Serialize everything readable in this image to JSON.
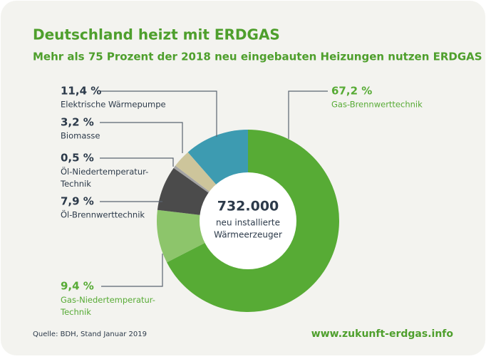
{
  "chart_data": {
    "type": "donut",
    "title": "Deutschland heizt mit ERDGAS",
    "subtitle": "Mehr als 75 Prozent der 2018 neu eingebauten Heizungen nutzen ERDGAS",
    "categories": [
      "Gas-Brennwerttechnik",
      "Gas-Niedertemperatur-Technik",
      "Öl-Brennwerttechnik",
      "Öl-Niedertemperatur-Technik",
      "Biomasse",
      "Elektrische Wärmepumpe"
    ],
    "values": [
      67.2,
      9.4,
      7.9,
      0.5,
      3.2,
      11.4
    ],
    "value_labels": [
      "67,2 %",
      "9,4 %",
      "7,9 %",
      "0,5 %",
      "3,2 %",
      "11,4 %"
    ],
    "colors": [
      "#57ab35",
      "#8dc56b",
      "#4b4b4b",
      "#a3a3a3",
      "#cdc59b",
      "#3d9bb1"
    ],
    "center_value": {
      "value": 732000,
      "label": "732.000"
    },
    "center_text": [
      "neu installierte",
      "Wärmeerzeuger"
    ],
    "source": "Quelle: BDH, Stand Januar 2019",
    "url": "www.zukunft-erdgas.info"
  }
}
